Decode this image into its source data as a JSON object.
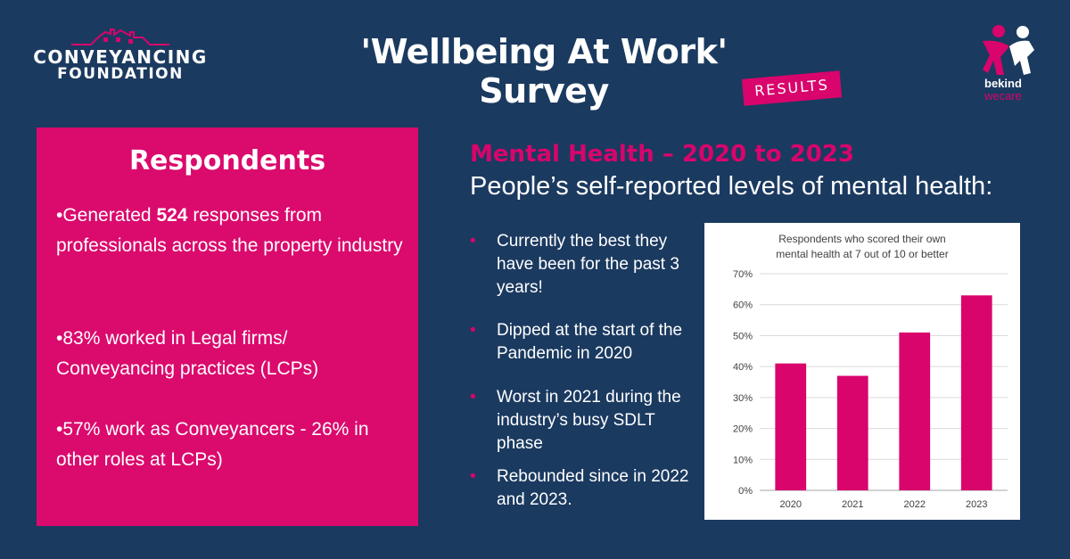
{
  "logo_left": {
    "line1": "CONVEYANCING",
    "line2": "FOUNDATION"
  },
  "header": {
    "title": "'Wellbeing At Work' Survey",
    "tag": "RESULTS"
  },
  "logo_right": {
    "line1": "bekind",
    "line2": "wecare"
  },
  "respondents": {
    "title": "Respondents",
    "items": [
      {
        "pre": "•Generated ",
        "bold": "524",
        "post": " responses from professionals across the property industry"
      },
      {
        "pre": "•83% worked in Legal firms/ Conveyancing practices (LCPs)",
        "bold": "",
        "post": ""
      },
      {
        "pre": "•57% work as Conveyancers - 26% in other roles at LCPs)",
        "bold": "",
        "post": ""
      }
    ]
  },
  "mental_health": {
    "title": "Mental Health – 2020 to 2023",
    "subtitle": "People’s self-reported levels of mental health:",
    "bullets": [
      "Currently the best they have been for the past 3 years!",
      "Dipped at the start of the Pandemic in 2020",
      "Worst in 2021 during the industry’s busy SDLT phase",
      "Rebounded since in 2022 and 2023."
    ]
  },
  "colors": {
    "background": "#1b3a60",
    "accent": "#d9046c",
    "text": "#ffffff"
  },
  "chart_data": {
    "type": "bar",
    "title_lines": [
      "Respondents who scored their own",
      "mental health at 7 out of 10 or better"
    ],
    "categories": [
      "2020",
      "2021",
      "2022",
      "2023"
    ],
    "values": [
      41,
      37,
      51,
      63
    ],
    "ylim": [
      0,
      70
    ],
    "yticks": [
      "0%",
      "10%",
      "20%",
      "30%",
      "40%",
      "50%",
      "60%",
      "70%"
    ],
    "bar_color": "#d9046c",
    "grid": true
  }
}
